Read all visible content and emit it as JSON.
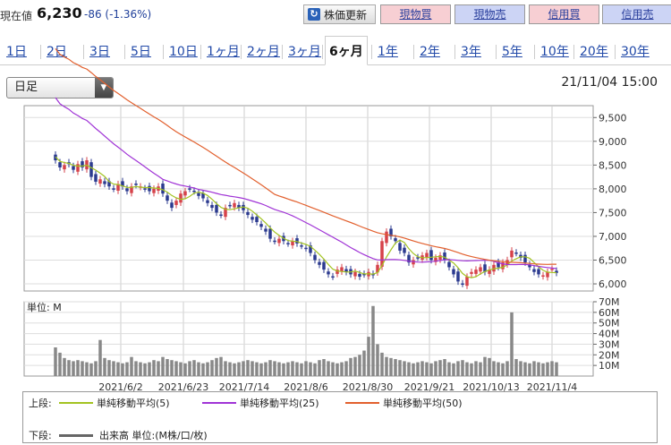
{
  "header": {
    "price_label": "現在値",
    "price_value": "6,230",
    "price_change": "-86 (-1.36%)",
    "refresh_label": "株価更新",
    "buttons": [
      "現物買",
      "現物売",
      "信用買",
      "信用売"
    ]
  },
  "tabs": [
    "1日",
    "2日",
    "3日",
    "5日",
    "10日",
    "1ヶ月",
    "2ヶ月",
    "3ヶ月",
    "6ヶ月",
    "1年",
    "2年",
    "3年",
    "5年",
    "10年",
    "20年",
    "30年"
  ],
  "active_tab": "6ヶ月",
  "select": {
    "value": "日足"
  },
  "datetime": "21/11/04 15:00",
  "chart_data": {
    "type": "candlestick",
    "x_tick_labels": [
      "2021/6/2",
      "2021/6/23",
      "2021/7/14",
      "2021/8/6",
      "2021/8/30",
      "2021/9/21",
      "2021/10/13",
      "2021/11/4"
    ],
    "price_axis": {
      "ticks": [
        "9,500",
        "9,000",
        "8,500",
        "8,000",
        "7,500",
        "7,000",
        "6,500",
        "6,000"
      ],
      "ylim": [
        5850,
        9750
      ]
    },
    "volume_axis": {
      "label": "単位: M",
      "ticks": [
        "70M",
        "60M",
        "50M",
        "40M",
        "30M",
        "20M",
        "10M"
      ],
      "ylim": [
        0,
        70
      ]
    },
    "close": [
      8600,
      8450,
      8500,
      8520,
      8400,
      8520,
      8450,
      8600,
      8250,
      8150,
      8200,
      8100,
      8050,
      8000,
      8100,
      8050,
      7950,
      8050,
      8080,
      8050,
      8000,
      7950,
      8000,
      8050,
      7900,
      7750,
      7600,
      7750,
      7900,
      7950,
      8000,
      7950,
      7850,
      7800,
      7700,
      7600,
      7500,
      7450,
      7600,
      7650,
      7700,
      7600,
      7550,
      7450,
      7350,
      7300,
      7200,
      7100,
      6950,
      6900,
      6950,
      6900,
      6850,
      6900,
      6850,
      6800,
      6750,
      6650,
      6500,
      6400,
      6300,
      6200,
      6150,
      6300,
      6350,
      6250,
      6200,
      6250,
      6150,
      6200,
      6250,
      6180,
      6400,
      6900,
      7100,
      7000,
      6900,
      6700,
      6650,
      6450,
      6500,
      6550,
      6600,
      6650,
      6500,
      6550,
      6600,
      6500,
      6350,
      6200,
      6050,
      6000,
      6150,
      6250,
      6300,
      6350,
      6250,
      6300,
      6400,
      6350,
      6450,
      6500,
      6700,
      6650,
      6550,
      6450,
      6350,
      6250,
      6200,
      6180,
      6250,
      6316,
      6230
    ],
    "volume": [
      27,
      22,
      17,
      15,
      14,
      15,
      14,
      13,
      12,
      14,
      34,
      17,
      15,
      14,
      13,
      12,
      13,
      18,
      14,
      13,
      12,
      13,
      15,
      14,
      18,
      16,
      15,
      14,
      13,
      12,
      14,
      15,
      13,
      12,
      13,
      15,
      17,
      18,
      14,
      13,
      12,
      13,
      14,
      15,
      14,
      13,
      12,
      13,
      15,
      14,
      13,
      12,
      13,
      14,
      13,
      12,
      14,
      13,
      12,
      15,
      16,
      14,
      13,
      12,
      13,
      14,
      17,
      18,
      20,
      24,
      37,
      66,
      30,
      22,
      18,
      17,
      16,
      15,
      14,
      13,
      12,
      13,
      14,
      13,
      12,
      14,
      15,
      16,
      13,
      12,
      14,
      15,
      13,
      12,
      14,
      13,
      18,
      17,
      14,
      13,
      12,
      14,
      60,
      16,
      14,
      13,
      12,
      14,
      13,
      12,
      13,
      14,
      13
    ],
    "series": [
      {
        "name": "単純移動平均(5)",
        "color": "#a3c321"
      },
      {
        "name": "単純移動平均(25)",
        "color": "#a034d6"
      },
      {
        "name": "単純移動平均(50)",
        "color": "#e2602e"
      }
    ],
    "colors": {
      "up": "#d6424a",
      "down": "#2b3a8f",
      "volume": "#888888"
    }
  },
  "legend": {
    "upper_label": "上段:",
    "lower_label": "下段:",
    "volume_item": "出来高 単位:(M株/口/枚)"
  }
}
